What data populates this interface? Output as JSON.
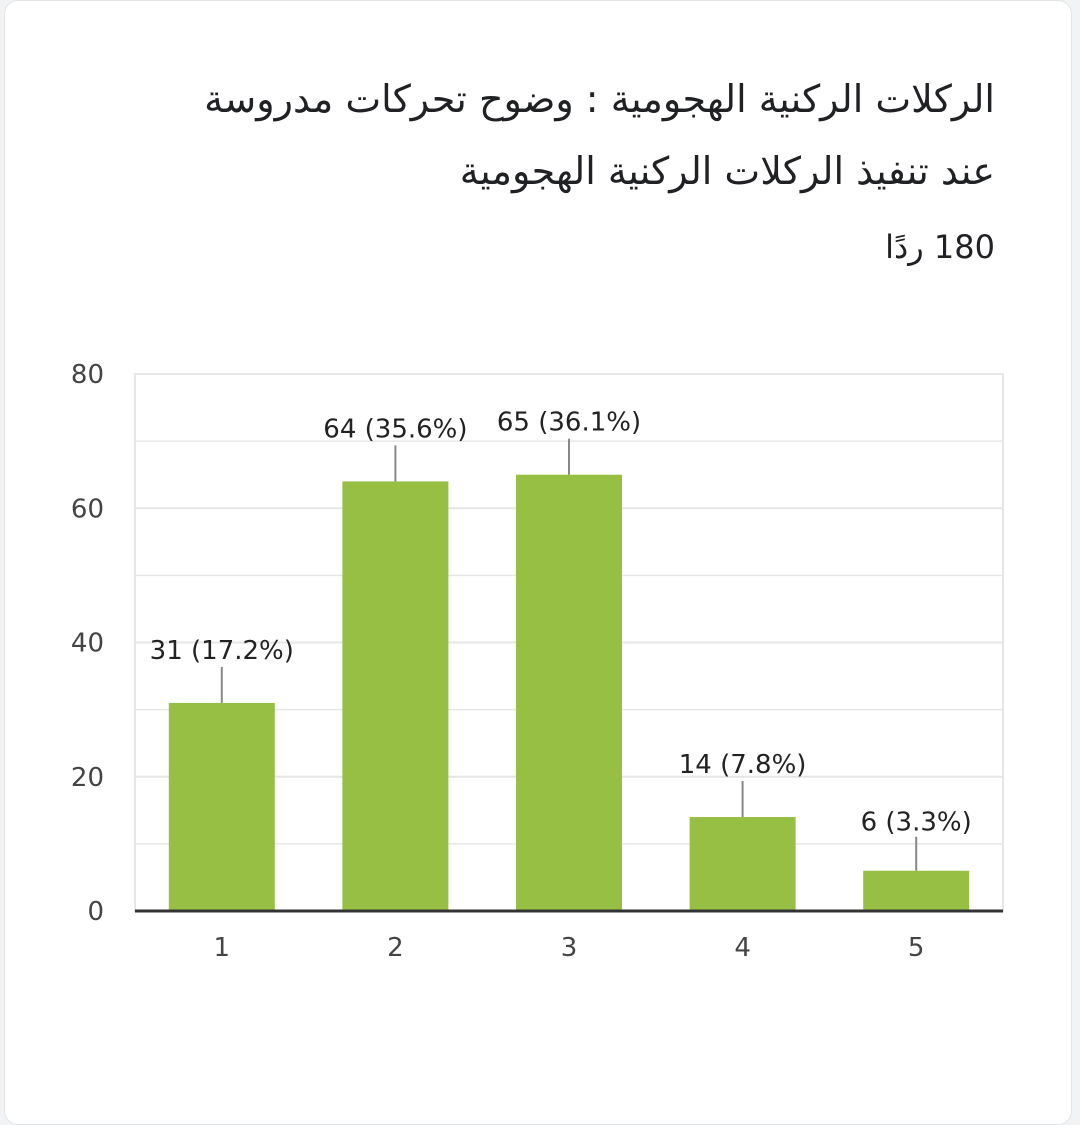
{
  "header": {
    "title": "الركلات الركنية الهجومية : وضوح تحركات مدروسة عند تنفيذ الركلات الركنية الهجومية",
    "responses": "180 ردًا"
  },
  "colors": {
    "bar": "#97bf43",
    "grid": "#e6e6e6",
    "axis": "#333333",
    "leader": "#888888"
  },
  "chart_data": {
    "type": "bar",
    "categories": [
      "1",
      "2",
      "3",
      "4",
      "5"
    ],
    "values": [
      31,
      64,
      65,
      14,
      6
    ],
    "percent_labels": [
      "(17.2%)",
      "(35.6%)",
      "(36.1%)",
      "(7.8%)",
      "(3.3%)"
    ],
    "ylim": [
      0,
      80
    ],
    "y_ticks": [
      "0",
      "20",
      "40",
      "60",
      "80"
    ],
    "grid": true,
    "title": "الركلات الركنية الهجومية : وضوح تحركات مدروسة عند تنفيذ الركلات الركنية الهجومية",
    "xlabel": "",
    "ylabel": ""
  }
}
